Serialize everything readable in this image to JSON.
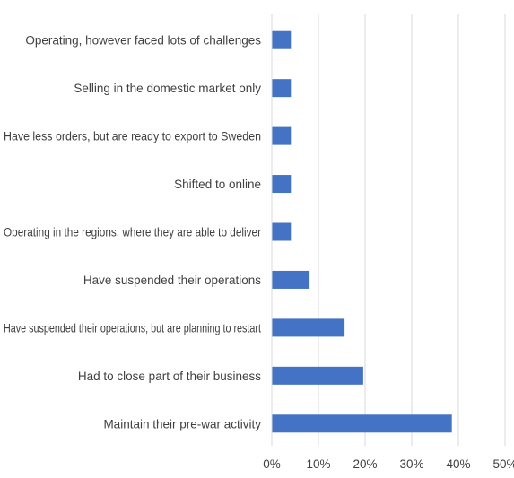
{
  "chart_data": {
    "type": "bar",
    "orientation": "horizontal",
    "title": "",
    "xlabel": "",
    "ylabel": "",
    "categories": [
      "Operating, however faced lots of challenges",
      "Selling in the domestic market only",
      "Have less orders, but are ready to export to Sweden",
      "Shifted to online",
      "Operating in the regions, where they are able to deliver",
      "Have suspended their operations",
      "Have suspended their operations, but are planning to restart",
      "Had to close part of their business",
      "Maintain their pre-war activity"
    ],
    "values": [
      4,
      4,
      4,
      4,
      4,
      8,
      15.5,
      19.5,
      38.5
    ],
    "xlim": [
      0,
      50
    ],
    "tick_values": [
      0,
      10,
      20,
      30,
      40,
      50
    ],
    "tick_labels": [
      "0%",
      "10%",
      "20%",
      "30%",
      "40%",
      "50%"
    ],
    "grid": true,
    "legend": "none",
    "bar_color": "#4472c4"
  }
}
